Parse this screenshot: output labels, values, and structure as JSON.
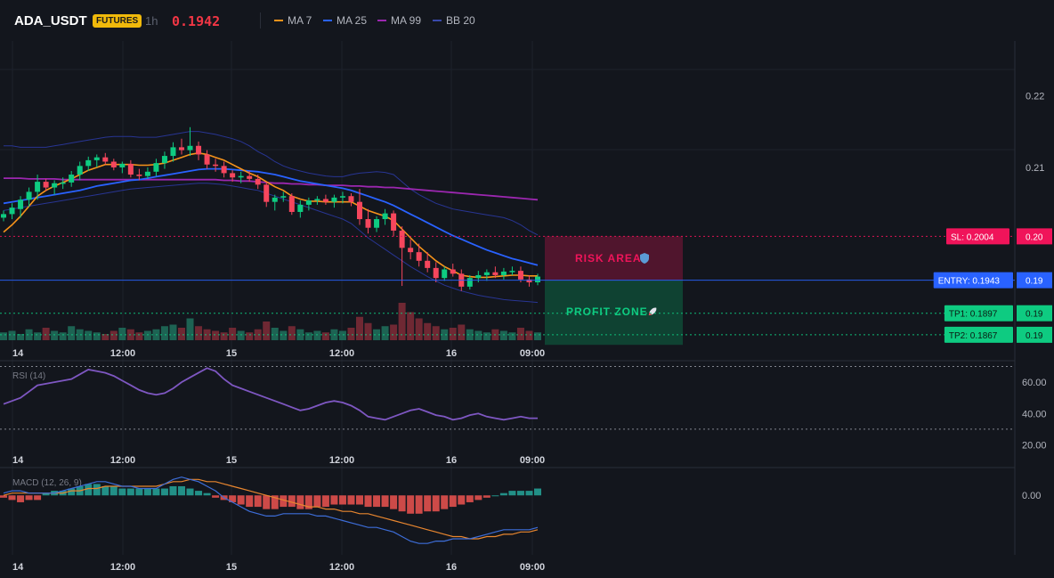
{
  "header": {
    "symbol": "ADA_USDT",
    "market_badge": "FUTURES",
    "timeframe": "1h",
    "last_price": "0.1942",
    "indicators": [
      {
        "label": "MA 7",
        "color": "#f7931a"
      },
      {
        "label": "MA 25",
        "color": "#2962ff"
      },
      {
        "label": "MA 99",
        "color": "#9c27b0"
      },
      {
        "label": "BB 20",
        "color": "#3949ab"
      }
    ]
  },
  "colors": {
    "up": "#0ecb81",
    "down": "#f6465d",
    "entry": "#2962ff",
    "stop": "#f0145a",
    "target": "#0ecb81",
    "rsi": "#7e57c2",
    "macd": "#3d6dd8",
    "macd_signal": "#e8862f"
  },
  "chart_data": [
    {
      "type": "candlestick",
      "title": "ADA_USDT 1h",
      "x_labels": [
        "14",
        "12:00",
        "15",
        "12:00",
        "16",
        "09:00"
      ],
      "y_ticks": [
        "0.22",
        "0.21"
      ],
      "ylim": [
        0.1852,
        0.2276
      ],
      "candles": [
        [
          0.203,
          0.204,
          0.2025,
          0.2035
        ],
        [
          0.2035,
          0.205,
          0.2028,
          0.2044
        ],
        [
          0.2042,
          0.206,
          0.203,
          0.2055
        ],
        [
          0.2055,
          0.2072,
          0.2045,
          0.2066
        ],
        [
          0.2066,
          0.209,
          0.2055,
          0.208
        ],
        [
          0.208,
          0.2084,
          0.2067,
          0.2072
        ],
        [
          0.2072,
          0.2082,
          0.2062,
          0.2078
        ],
        [
          0.2078,
          0.2086,
          0.207,
          0.2079
        ],
        [
          0.2079,
          0.2095,
          0.2073,
          0.209
        ],
        [
          0.209,
          0.2108,
          0.2082,
          0.2102
        ],
        [
          0.2102,
          0.2115,
          0.2095,
          0.211
        ],
        [
          0.211,
          0.2118,
          0.21,
          0.2114
        ],
        [
          0.2114,
          0.212,
          0.2104,
          0.2108
        ],
        [
          0.2108,
          0.2112,
          0.2096,
          0.21
        ],
        [
          0.21,
          0.2108,
          0.2092,
          0.2105
        ],
        [
          0.2105,
          0.211,
          0.2086,
          0.209
        ],
        [
          0.209,
          0.2098,
          0.2082,
          0.2088
        ],
        [
          0.2088,
          0.21,
          0.2084,
          0.2094
        ],
        [
          0.2094,
          0.2112,
          0.2088,
          0.2106
        ],
        [
          0.2106,
          0.2122,
          0.2098,
          0.2116
        ],
        [
          0.2116,
          0.2135,
          0.2108,
          0.2128
        ],
        [
          0.2128,
          0.214,
          0.2118,
          0.2124
        ],
        [
          0.2124,
          0.2156,
          0.2116,
          0.213
        ],
        [
          0.213,
          0.2136,
          0.211,
          0.2118
        ],
        [
          0.2118,
          0.2124,
          0.2098,
          0.2104
        ],
        [
          0.2104,
          0.2112,
          0.2094,
          0.2102
        ],
        [
          0.2102,
          0.2108,
          0.2086,
          0.2092
        ],
        [
          0.2092,
          0.2096,
          0.208,
          0.2086
        ],
        [
          0.2086,
          0.2094,
          0.2078,
          0.2088
        ],
        [
          0.2088,
          0.2095,
          0.208,
          0.2084
        ],
        [
          0.2084,
          0.209,
          0.207,
          0.2076
        ],
        [
          0.2076,
          0.208,
          0.2045,
          0.2052
        ],
        [
          0.2052,
          0.2062,
          0.204,
          0.2058
        ],
        [
          0.2058,
          0.2066,
          0.2052,
          0.206
        ],
        [
          0.206,
          0.2064,
          0.2034,
          0.2038
        ],
        [
          0.2038,
          0.2054,
          0.203,
          0.2048
        ],
        [
          0.2048,
          0.2058,
          0.204,
          0.2054
        ],
        [
          0.2054,
          0.206,
          0.2048,
          0.2056
        ],
        [
          0.2056,
          0.2062,
          0.2048,
          0.2052
        ],
        [
          0.2052,
          0.2062,
          0.2044,
          0.2058
        ],
        [
          0.2058,
          0.2066,
          0.205,
          0.206
        ],
        [
          0.206,
          0.2064,
          0.2046,
          0.2052
        ],
        [
          0.2052,
          0.207,
          0.202,
          0.2028
        ],
        [
          0.2028,
          0.2042,
          0.2008,
          0.2016
        ],
        [
          0.2016,
          0.2032,
          0.201,
          0.2028
        ],
        [
          0.2028,
          0.2042,
          0.202,
          0.2036
        ],
        [
          0.2036,
          0.204,
          0.2004,
          0.2012
        ],
        [
          0.2012,
          0.2018,
          0.1935,
          0.1988
        ],
        [
          0.1988,
          0.2,
          0.1972,
          0.1982
        ],
        [
          0.1982,
          0.1994,
          0.1962,
          0.197
        ],
        [
          0.197,
          0.1982,
          0.1954,
          0.196
        ],
        [
          0.196,
          0.1968,
          0.194,
          0.1946
        ],
        [
          0.1946,
          0.1962,
          0.1942,
          0.1958
        ],
        [
          0.1958,
          0.1966,
          0.1948,
          0.1952
        ],
        [
          0.1952,
          0.1958,
          0.1928,
          0.1934
        ],
        [
          0.1934,
          0.195,
          0.193,
          0.1946
        ],
        [
          0.1946,
          0.1956,
          0.194,
          0.195
        ],
        [
          0.195,
          0.1958,
          0.1942,
          0.1954
        ],
        [
          0.1954,
          0.1962,
          0.1946,
          0.195
        ],
        [
          0.195,
          0.196,
          0.1944,
          0.1955
        ],
        [
          0.1955,
          0.1962,
          0.195,
          0.1956
        ],
        [
          0.1956,
          0.1962,
          0.194,
          0.1944
        ],
        [
          0.1944,
          0.195,
          0.1934,
          0.194
        ],
        [
          0.194,
          0.1952,
          0.1936,
          0.1948
        ]
      ],
      "volume": [
        5,
        6,
        4,
        7,
        5,
        8,
        6,
        5,
        9,
        7,
        6,
        5,
        4,
        6,
        8,
        7,
        5,
        6,
        7,
        9,
        10,
        8,
        14,
        9,
        7,
        6,
        5,
        8,
        6,
        5,
        7,
        12,
        8,
        6,
        9,
        7,
        5,
        6,
        5,
        7,
        6,
        8,
        15,
        11,
        7,
        9,
        10,
        24,
        18,
        14,
        11,
        9,
        7,
        8,
        10,
        7,
        6,
        5,
        7,
        6,
        5,
        8,
        6,
        5
      ],
      "moving_averages": [
        {
          "name": "MA 7",
          "values": [
            0.201,
            0.202,
            0.2032,
            0.2046,
            0.206,
            0.2068,
            0.2074,
            0.2079,
            0.2084,
            0.209,
            0.2096,
            0.21,
            0.2104,
            0.2104,
            0.2104,
            0.2104,
            0.2103,
            0.2103,
            0.2104,
            0.2106,
            0.211,
            0.2114,
            0.2118,
            0.212,
            0.2118,
            0.2114,
            0.211,
            0.2104,
            0.2098,
            0.2092,
            0.2087,
            0.208,
            0.2073,
            0.2068,
            0.206,
            0.2056,
            0.2053,
            0.2053,
            0.2052,
            0.2052,
            0.2052,
            0.2052,
            0.2046,
            0.204,
            0.2036,
            0.2032,
            0.2026,
            0.2014,
            0.2002,
            0.199,
            0.198,
            0.197,
            0.1962,
            0.1956,
            0.195,
            0.1948,
            0.1947,
            0.1947,
            0.1948,
            0.1949,
            0.195,
            0.195,
            0.1949,
            0.1949
          ]
        },
        {
          "name": "MA 25",
          "values": [
            0.205,
            0.2052,
            0.2054,
            0.2056,
            0.2058,
            0.206,
            0.2062,
            0.2064,
            0.2066,
            0.2068,
            0.2071,
            0.2074,
            0.2076,
            0.2078,
            0.208,
            0.2082,
            0.2083,
            0.2085,
            0.2087,
            0.2089,
            0.2091,
            0.2093,
            0.2095,
            0.2097,
            0.2098,
            0.2098,
            0.2098,
            0.2097,
            0.2096,
            0.2095,
            0.2094,
            0.2092,
            0.209,
            0.2087,
            0.2084,
            0.2081,
            0.2079,
            0.2077,
            0.2075,
            0.2073,
            0.2071,
            0.2068,
            0.2064,
            0.206,
            0.2056,
            0.2052,
            0.2047,
            0.2041,
            0.2035,
            0.2029,
            0.2023,
            0.2017,
            0.2011,
            0.2005,
            0.2,
            0.1995,
            0.199,
            0.1985,
            0.1981,
            0.1977,
            0.1973,
            0.197,
            0.1967,
            0.1964
          ]
        },
        {
          "name": "MA 99",
          "values": [
            0.2085,
            0.2085,
            0.2085,
            0.2084,
            0.2084,
            0.2084,
            0.2084,
            0.2083,
            0.2083,
            0.2083,
            0.2083,
            0.2083,
            0.2083,
            0.2083,
            0.2083,
            0.2083,
            0.2083,
            0.2083,
            0.2083,
            0.2083,
            0.2083,
            0.2083,
            0.2083,
            0.2083,
            0.2083,
            0.2083,
            0.2082,
            0.2082,
            0.2081,
            0.2081,
            0.208,
            0.2079,
            0.2078,
            0.2078,
            0.2077,
            0.2077,
            0.2076,
            0.2076,
            0.2075,
            0.2075,
            0.2075,
            0.2074,
            0.2074,
            0.2073,
            0.2073,
            0.2072,
            0.2072,
            0.2071,
            0.207,
            0.2069,
            0.2068,
            0.2067,
            0.2066,
            0.2065,
            0.2064,
            0.2063,
            0.2062,
            0.2061,
            0.206,
            0.2059,
            0.2058,
            0.2057,
            0.2056,
            0.2055
          ]
        },
        {
          "name": "BB upper",
          "values": [
            0.213,
            0.213,
            0.2128,
            0.2128,
            0.2128,
            0.2128,
            0.213,
            0.2132,
            0.2134,
            0.2136,
            0.2138,
            0.214,
            0.2142,
            0.2143,
            0.2143,
            0.2143,
            0.2142,
            0.2142,
            0.2142,
            0.2144,
            0.2146,
            0.2148,
            0.215,
            0.215,
            0.2148,
            0.2146,
            0.2143,
            0.214,
            0.2136,
            0.213,
            0.2122,
            0.2116,
            0.2108,
            0.2102,
            0.2098,
            0.2095,
            0.2092,
            0.209,
            0.2088,
            0.2087,
            0.2087,
            0.209,
            0.2092,
            0.2093,
            0.2094,
            0.2093,
            0.209,
            0.208,
            0.207,
            0.2062,
            0.2056,
            0.205,
            0.2046,
            0.2042,
            0.204,
            0.2038,
            0.2036,
            0.2034,
            0.2032,
            0.203,
            0.2026,
            0.202,
            0.2012,
            0.2006
          ]
        },
        {
          "name": "BB lower",
          "values": [
            0.204,
            0.2042,
            0.2044,
            0.2046,
            0.2048,
            0.205,
            0.2052,
            0.2054,
            0.2056,
            0.2058,
            0.206,
            0.2062,
            0.2064,
            0.2066,
            0.2068,
            0.207,
            0.2071,
            0.2072,
            0.2073,
            0.2074,
            0.2075,
            0.2076,
            0.2077,
            0.2078,
            0.2078,
            0.2077,
            0.2076,
            0.2074,
            0.2072,
            0.207,
            0.2068,
            0.2064,
            0.206,
            0.2056,
            0.2052,
            0.2048,
            0.2044,
            0.204,
            0.2036,
            0.2032,
            0.2028,
            0.2022,
            0.2012,
            0.2002,
            0.1994,
            0.1986,
            0.1978,
            0.197,
            0.1962,
            0.1955,
            0.1948,
            0.1942,
            0.1936,
            0.1932,
            0.1928,
            0.1925,
            0.1922,
            0.192,
            0.1918,
            0.1916,
            0.1915,
            0.1914,
            0.1913,
            0.1912
          ]
        }
      ],
      "levels": [
        {
          "label": "SL: 0.2004",
          "value": 0.2004,
          "scale_label": "0.20",
          "kind": "stop"
        },
        {
          "label": "ENTRY: 0.1943",
          "value": 0.1943,
          "scale_label": "0.19",
          "kind": "entry"
        },
        {
          "label": "TP1: 0.1897",
          "value": 0.1897,
          "scale_label": "0.19",
          "kind": "target"
        },
        {
          "label": "TP2: 0.1867",
          "value": 0.1867,
          "scale_label": "0.19",
          "kind": "target"
        }
      ],
      "zones": [
        {
          "label": "RISK AREA",
          "icon": "shield-icon",
          "from": 0.1943,
          "to": 0.2004,
          "kind": "risk"
        },
        {
          "label": "PROFIT ZONE",
          "icon": "rocket-icon",
          "from": 0.1853,
          "to": 0.1943,
          "kind": "profit"
        }
      ]
    },
    {
      "type": "line",
      "title": "RSI (14)",
      "y_ticks": [
        "60.00",
        "40.00",
        "20.00"
      ],
      "ylim": [
        18,
        72
      ],
      "bands": [
        70,
        30
      ],
      "values": [
        46,
        48,
        50,
        54,
        58,
        59,
        60,
        61,
        62,
        65,
        68,
        67,
        66,
        64,
        61,
        58,
        55,
        53,
        52,
        53,
        56,
        60,
        63,
        66,
        69,
        67,
        62,
        58,
        56,
        54,
        52,
        50,
        48,
        46,
        44,
        42,
        43,
        45,
        47,
        48,
        47,
        45,
        42,
        38,
        37,
        36,
        38,
        40,
        42,
        43,
        41,
        39,
        38,
        36,
        37,
        39,
        40,
        38,
        37,
        36,
        37,
        38,
        37,
        37
      ]
    },
    {
      "type": "histogram+line",
      "title": "MACD (12, 26, 9)",
      "y_ticks": [
        "0.00"
      ],
      "ylim": [
        -0.0026,
        0.0011
      ],
      "histogram": [
        -0.0001,
        -0.0002,
        -0.0003,
        -0.0002,
        -0.0002,
        0.0001,
        0.0002,
        0.0002,
        0.0003,
        0.0004,
        0.0005,
        0.0005,
        0.0004,
        0.0004,
        0.0003,
        0.0003,
        0.0003,
        0.0003,
        0.0003,
        0.0003,
        0.0004,
        0.0004,
        0.0003,
        0.0002,
        0.0001,
        -0.0001,
        -0.0002,
        -0.0003,
        -0.0004,
        -0.0005,
        -0.0005,
        -0.0006,
        -0.0006,
        -0.0005,
        -0.0005,
        -0.0006,
        -0.0006,
        -0.0005,
        -0.0005,
        -0.0004,
        -0.0004,
        -0.0004,
        -0.0004,
        -0.0005,
        -0.0005,
        -0.0005,
        -0.0006,
        -0.0007,
        -0.0008,
        -0.0008,
        -0.0007,
        -0.0007,
        -0.0006,
        -0.0005,
        -0.0004,
        -0.0003,
        -0.0002,
        -0.0001,
        0.0,
        0.0001,
        0.0002,
        0.0002,
        0.0002,
        0.0003
      ],
      "macd": [
        0.0001,
        0.0002,
        0.0002,
        0.0001,
        0.0001,
        0.0001,
        0.0001,
        0.0002,
        0.0003,
        0.0004,
        0.0005,
        0.0006,
        0.0006,
        0.0005,
        0.0004,
        0.0004,
        0.0003,
        0.0003,
        0.0003,
        0.0005,
        0.0007,
        0.0008,
        0.0007,
        0.0006,
        0.0004,
        0.0002,
        -0.0001,
        -0.0003,
        -0.0005,
        -0.0007,
        -0.0008,
        -0.0009,
        -0.0009,
        -0.0008,
        -0.0008,
        -0.0008,
        -0.0008,
        -0.0009,
        -0.0009,
        -0.001,
        -0.0011,
        -0.0012,
        -0.0013,
        -0.0014,
        -0.0014,
        -0.0015,
        -0.0016,
        -0.0018,
        -0.002,
        -0.0021,
        -0.0021,
        -0.002,
        -0.002,
        -0.0019,
        -0.0019,
        -0.0019,
        -0.0018,
        -0.0017,
        -0.0016,
        -0.0015,
        -0.0015,
        -0.0015,
        -0.0015,
        -0.0014
      ],
      "signal": [
        0.0,
        0.0001,
        0.0001,
        0.0001,
        0.0001,
        0.0001,
        0.0001,
        0.0001,
        0.0002,
        0.0002,
        0.0003,
        0.0003,
        0.0004,
        0.0004,
        0.0004,
        0.0004,
        0.0004,
        0.0004,
        0.0004,
        0.0005,
        0.0006,
        0.0006,
        0.0007,
        0.0007,
        0.0006,
        0.0006,
        0.0005,
        0.0004,
        0.0003,
        0.0002,
        0.0001,
        0.0,
        -0.0001,
        -0.0002,
        -0.0003,
        -0.0004,
        -0.0005,
        -0.0005,
        -0.0006,
        -0.0006,
        -0.0007,
        -0.0007,
        -0.0008,
        -0.0008,
        -0.0009,
        -0.001,
        -0.0011,
        -0.0012,
        -0.0013,
        -0.0014,
        -0.0015,
        -0.0016,
        -0.0017,
        -0.0018,
        -0.0018,
        -0.0019,
        -0.0019,
        -0.0018,
        -0.0018,
        -0.0017,
        -0.0017,
        -0.0016,
        -0.0016,
        -0.0015
      ]
    }
  ]
}
